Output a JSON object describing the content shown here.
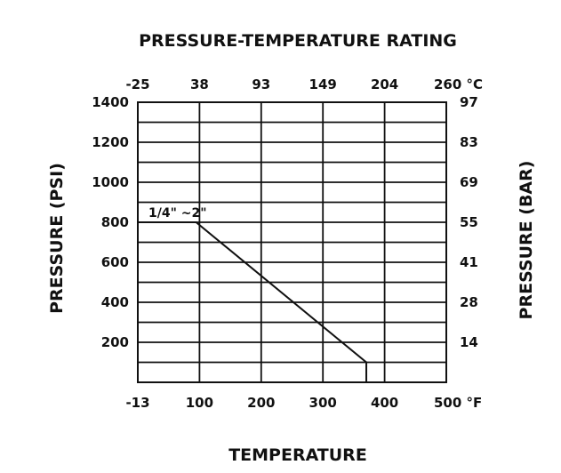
{
  "chart_data": {
    "type": "line",
    "title": "PRESSURE-TEMPERATURE RATING",
    "xlabel": "TEMPERATURE",
    "ylabel": "PRESSURE (PSI)",
    "ylabel_right": "PRESSURE (BAR)",
    "x_unit": "°F",
    "x_unit_top": "°C",
    "x_ticks_bottom": [
      "-13",
      "100",
      "200",
      "300",
      "400",
      "500"
    ],
    "x_ticks_top": [
      "-25",
      "38",
      "93",
      "149",
      "204",
      "260"
    ],
    "y_ticks_left": [
      "200",
      "400",
      "600",
      "800",
      "1000",
      "1200",
      "1400"
    ],
    "y_ticks_right": [
      "14",
      "28",
      "41",
      "55",
      "69",
      "83",
      "97"
    ],
    "xlim": [
      -13,
      500
    ],
    "ylim": [
      0,
      1400
    ],
    "grid": true,
    "series": [
      {
        "name": "1/4\" ~2\"",
        "x": [
          -13,
          84,
          367,
          367
        ],
        "y": [
          800,
          800,
          100,
          0
        ]
      }
    ]
  }
}
